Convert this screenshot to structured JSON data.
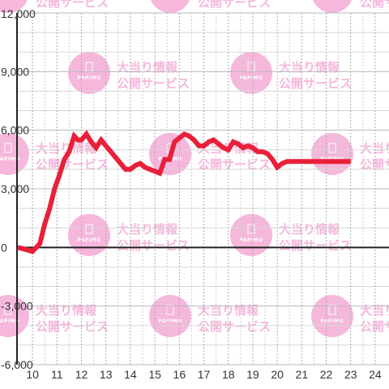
{
  "chart_data": {
    "type": "line",
    "title": "",
    "xlabel": "",
    "ylabel": "",
    "xlim": [
      9.4,
      24.3
    ],
    "ylim": [
      -6000,
      12000
    ],
    "x_ticks": [
      "10",
      "11",
      "12",
      "13",
      "14",
      "15",
      "16",
      "17",
      "18",
      "19",
      "20",
      "21",
      "22",
      "23",
      "24"
    ],
    "y_ticks": [
      "12,000",
      "9,000",
      "6,000",
      "3,000",
      "0",
      "-3,000",
      "-6,000"
    ],
    "grid": true,
    "line_color": "#e8203a",
    "watermark": {
      "logo_text": "PAPIMO",
      "line1": "大当り情報",
      "line2": "公開サービス",
      "color": "#f6b7dc"
    },
    "series": [
      {
        "x": [
          9.4,
          9.7,
          10.0,
          10.3,
          10.5,
          10.7,
          10.9,
          11.1,
          11.3,
          11.5,
          11.7,
          11.85,
          12.0,
          12.2,
          12.4,
          12.6,
          12.8,
          13.0,
          13.2,
          13.4,
          13.6,
          13.8,
          14.0,
          14.2,
          14.4,
          14.6,
          14.8,
          15.0,
          15.2,
          15.4,
          15.6,
          15.8,
          16.0,
          16.2,
          16.4,
          16.6,
          16.8,
          17.0,
          17.2,
          17.4,
          17.6,
          17.8,
          18.0,
          18.2,
          18.4,
          18.6,
          18.8,
          19.0,
          19.2,
          19.4,
          19.6,
          19.8,
          20.0,
          20.2,
          20.4,
          20.6,
          20.8,
          21.0,
          21.5,
          22.0,
          22.5,
          23.0
        ],
        "y": [
          0,
          -100,
          -200,
          200,
          1200,
          2000,
          3000,
          3700,
          4500,
          4900,
          5700,
          5500,
          5500,
          5800,
          5400,
          5100,
          5500,
          5200,
          4900,
          4600,
          4300,
          4000,
          4000,
          4200,
          4300,
          4100,
          4000,
          3900,
          3800,
          4500,
          4500,
          5400,
          5600,
          5800,
          5700,
          5500,
          5200,
          5200,
          5400,
          5500,
          5300,
          5100,
          5000,
          5400,
          5300,
          5100,
          5200,
          5100,
          4900,
          4900,
          4800,
          4500,
          4100,
          4300,
          4400,
          4400,
          4400,
          4400,
          4400,
          4400,
          4400,
          4400
        ]
      }
    ]
  }
}
